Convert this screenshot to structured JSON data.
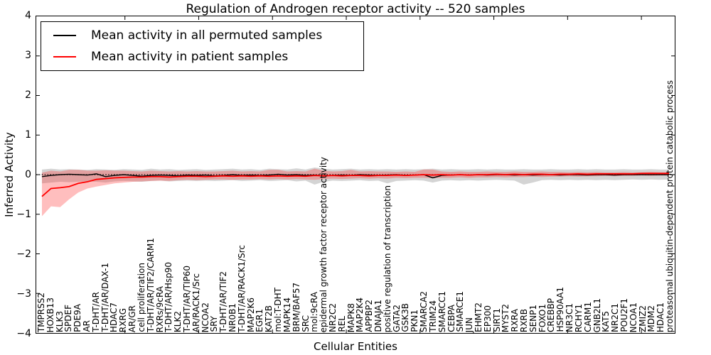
{
  "title": "Regulation of Androgen receptor activity -- 520 samples",
  "xlabel": "Cellular Entities",
  "ylabel": "Inferred Activity",
  "legend": [
    {
      "label": "Mean activity in all permuted samples",
      "color": "#000000"
    },
    {
      "label": "Mean activity in patient samples",
      "color": "#ff0000"
    }
  ],
  "yticks": [
    {
      "label": "4",
      "value": 4
    },
    {
      "label": "3",
      "value": 3
    },
    {
      "label": "2",
      "value": 2
    },
    {
      "label": "1",
      "value": 1
    },
    {
      "label": "0",
      "value": 0
    },
    {
      "label": "−1",
      "value": -1
    },
    {
      "label": "−2",
      "value": -2
    },
    {
      "label": "−3",
      "value": -3
    },
    {
      "label": "−4",
      "value": -4
    }
  ],
  "chart_data": {
    "type": "line",
    "title": "Regulation of Androgen receptor activity -- 520 samples",
    "xlabel": "Cellular Entities",
    "ylabel": "Inferred Activity",
    "ylim": [
      -4,
      4
    ],
    "grid": false,
    "legend_position": "upper left",
    "zero_line_style": "dotted",
    "categories": [
      "TMPRSS2",
      "HOXB13",
      "KLK3",
      "SPDEF",
      "PDE9A",
      "AR",
      "T-DHT/AR",
      "T-DHT/AR/DAX-1",
      "HDAC7",
      "RXRG",
      "AR/GR",
      "cell proliferation",
      "T-DHT/AR/TIF2/CARM1",
      "RXRs/9cRA",
      "T-DHT/AR/Hsp90",
      "KLK2",
      "T-DHT/AR/TIP60",
      "AR/RACK1/Src",
      "NCOA2",
      "SRY",
      "T-DHT/AR/TIF2",
      "NR0B1",
      "T-DHT/AR/RACK1/Src",
      "MAP2K6",
      "EGR1",
      "KAT2B",
      "mol:T-DHT",
      "MAPK14",
      "BRM/BAF57",
      "SRC",
      "mol:9cRA",
      "epidermal growth factor receptor activity",
      "NR2C2",
      "REL",
      "MAPK8",
      "MAP2K4",
      "APPBP2",
      "DNAJA1",
      "positive regulation of transcription",
      "GATA2",
      "GSK3B",
      "PKN1",
      "SMARCA2",
      "TRIM24",
      "SMARCC1",
      "CEBPA",
      "SMARCE1",
      "JUN",
      "EHMT2",
      "EP300",
      "SIRT1",
      "MYST2",
      "RXRA",
      "RXRB",
      "SENP1",
      "FOXO1",
      "CREBBP",
      "HSP90AA1",
      "NR3C1",
      "RCHY1",
      "CARM1",
      "GNB2L1",
      "KAT5",
      "NR2C1",
      "POU2F1",
      "NCOA1",
      "ZMIZ2",
      "MDM2",
      "HDAC1",
      "proteasomal ubiquitin-dependent protein catabolic process"
    ],
    "series": [
      {
        "name": "Mean activity in all permuted samples",
        "color": "#000000",
        "band_color": "rgba(120,120,120,0.32)",
        "values": [
          -0.05,
          -0.02,
          0.0,
          0.01,
          0.0,
          -0.01,
          0.02,
          -0.05,
          -0.02,
          0.0,
          -0.02,
          -0.04,
          -0.02,
          -0.01,
          -0.02,
          -0.03,
          -0.01,
          -0.02,
          -0.01,
          -0.03,
          -0.02,
          0.0,
          -0.02,
          -0.01,
          -0.02,
          -0.01,
          0.01,
          -0.01,
          0.0,
          -0.02,
          -0.01,
          -0.03,
          -0.02,
          -0.01,
          -0.02,
          0.0,
          -0.01,
          -0.02,
          -0.01,
          0.0,
          -0.02,
          -0.01,
          0.0,
          -0.08,
          -0.02,
          -0.01,
          0.0,
          -0.01,
          0.0,
          -0.01,
          0.0,
          0.0,
          -0.01,
          0.0,
          -0.01,
          0.0,
          0.0,
          -0.01,
          0.0,
          0.0,
          -0.01,
          0.0,
          0.0,
          -0.01,
          0.0,
          0.0,
          0.0,
          0.0,
          0.0,
          0.0
        ],
        "band_upper": [
          0.13,
          0.15,
          0.13,
          0.14,
          0.13,
          0.12,
          0.14,
          0.13,
          0.12,
          0.14,
          0.13,
          0.12,
          0.15,
          0.13,
          0.14,
          0.12,
          0.13,
          0.14,
          0.12,
          0.13,
          0.14,
          0.15,
          0.13,
          0.14,
          0.12,
          0.15,
          0.14,
          0.13,
          0.16,
          0.13,
          0.18,
          0.15,
          0.13,
          0.14,
          0.15,
          0.13,
          0.14,
          0.13,
          0.14,
          0.13,
          0.14,
          0.13,
          0.14,
          0.15,
          0.13,
          0.14,
          0.13,
          0.13,
          0.14,
          0.13,
          0.14,
          0.13,
          0.13,
          0.14,
          0.13,
          0.13,
          0.14,
          0.13,
          0.13,
          0.14,
          0.13,
          0.14,
          0.13,
          0.13,
          0.14,
          0.13,
          0.13,
          0.14,
          0.13,
          0.13
        ],
        "band_lower": [
          -0.22,
          -0.2,
          -0.18,
          -0.19,
          -0.18,
          -0.17,
          -0.18,
          -0.2,
          -0.17,
          -0.16,
          -0.17,
          -0.18,
          -0.16,
          -0.15,
          -0.17,
          -0.16,
          -0.15,
          -0.16,
          -0.15,
          -0.16,
          -0.15,
          -0.14,
          -0.16,
          -0.15,
          -0.14,
          -0.16,
          -0.15,
          -0.14,
          -0.17,
          -0.15,
          -0.25,
          -0.18,
          -0.15,
          -0.16,
          -0.15,
          -0.14,
          -0.16,
          -0.15,
          -0.22,
          -0.16,
          -0.15,
          -0.14,
          -0.15,
          -0.2,
          -0.15,
          -0.14,
          -0.15,
          -0.14,
          -0.15,
          -0.14,
          -0.13,
          -0.14,
          -0.15,
          -0.25,
          -0.2,
          -0.14,
          -0.13,
          -0.14,
          -0.13,
          -0.14,
          -0.13,
          -0.14,
          -0.13,
          -0.14,
          -0.13,
          -0.12,
          -0.13,
          -0.12,
          -0.13,
          -0.12
        ]
      },
      {
        "name": "Mean activity in patient samples",
        "color": "#ff0000",
        "band_color": "rgba(255,40,40,0.30)",
        "values": [
          -0.55,
          -0.35,
          -0.33,
          -0.3,
          -0.22,
          -0.18,
          -0.12,
          -0.1,
          -0.08,
          -0.07,
          -0.06,
          -0.06,
          -0.05,
          -0.05,
          -0.06,
          -0.05,
          -0.04,
          -0.04,
          -0.05,
          -0.04,
          -0.03,
          -0.04,
          -0.03,
          -0.04,
          -0.03,
          -0.04,
          -0.03,
          -0.04,
          -0.03,
          -0.04,
          -0.02,
          -0.03,
          -0.02,
          -0.03,
          -0.02,
          -0.02,
          -0.03,
          -0.02,
          -0.02,
          -0.01,
          -0.02,
          -0.01,
          0.0,
          -0.01,
          0.0,
          -0.01,
          0.0,
          -0.01,
          0.0,
          0.0,
          0.01,
          0.0,
          0.01,
          0.0,
          0.01,
          0.01,
          0.0,
          0.01,
          0.01,
          0.02,
          0.01,
          0.02,
          0.02,
          0.02,
          0.02,
          0.02,
          0.03,
          0.03,
          0.03,
          0.03
        ],
        "band_upper": [
          0.05,
          0.1,
          0.08,
          0.12,
          0.12,
          0.1,
          0.1,
          0.11,
          0.1,
          0.1,
          0.09,
          0.08,
          0.1,
          0.09,
          0.08,
          0.09,
          0.08,
          0.09,
          0.08,
          0.08,
          0.09,
          0.1,
          0.08,
          0.09,
          0.08,
          0.12,
          0.12,
          0.08,
          0.09,
          0.08,
          0.15,
          0.1,
          0.08,
          0.09,
          0.12,
          0.08,
          0.09,
          0.08,
          0.08,
          0.07,
          0.08,
          0.07,
          0.13,
          0.13,
          0.08,
          0.07,
          0.08,
          0.07,
          0.07,
          0.08,
          0.07,
          0.07,
          0.08,
          0.07,
          0.07,
          0.08,
          0.07,
          0.07,
          0.06,
          0.07,
          0.06,
          0.07,
          0.06,
          0.06,
          0.07,
          0.06,
          0.06,
          0.07,
          0.06,
          0.06
        ],
        "band_lower": [
          -1.05,
          -0.8,
          -0.82,
          -0.62,
          -0.45,
          -0.35,
          -0.3,
          -0.26,
          -0.22,
          -0.2,
          -0.18,
          -0.17,
          -0.16,
          -0.15,
          -0.16,
          -0.14,
          -0.13,
          -0.14,
          -0.13,
          -0.12,
          -0.12,
          -0.13,
          -0.12,
          -0.12,
          -0.11,
          -0.12,
          -0.11,
          -0.12,
          -0.11,
          -0.12,
          -0.13,
          -0.11,
          -0.1,
          -0.11,
          -0.1,
          -0.09,
          -0.1,
          -0.09,
          -0.1,
          -0.08,
          -0.09,
          -0.08,
          -0.08,
          -0.09,
          -0.08,
          -0.08,
          -0.07,
          -0.08,
          -0.07,
          -0.07,
          -0.06,
          -0.07,
          -0.06,
          -0.06,
          -0.05,
          -0.06,
          -0.05,
          -0.05,
          -0.04,
          -0.05,
          -0.04,
          -0.04,
          -0.03,
          -0.04,
          -0.03,
          -0.03,
          -0.02,
          -0.03,
          -0.02,
          -0.02
        ]
      }
    ]
  }
}
